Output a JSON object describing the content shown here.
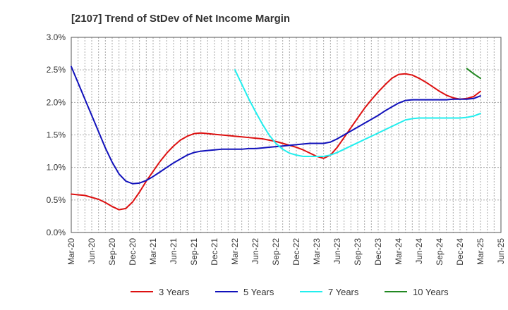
{
  "chart_data": {
    "type": "line",
    "title": "[2107]  Trend of StDev of Net Income Margin",
    "xlabel": "",
    "ylabel": "",
    "x_ticks": [
      "Mar-20",
      "Jun-20",
      "Sep-20",
      "Dec-20",
      "Mar-21",
      "Jun-21",
      "Sep-21",
      "Dec-21",
      "Mar-22",
      "Jun-22",
      "Sep-22",
      "Dec-22",
      "Mar-23",
      "Jun-23",
      "Sep-23",
      "Dec-23",
      "Mar-24",
      "Jun-24",
      "Sep-24",
      "Dec-24",
      "Mar-25",
      "Jun-25"
    ],
    "y_ticks": [
      "0.0%",
      "0.5%",
      "1.0%",
      "1.5%",
      "2.0%",
      "2.5%",
      "3.0%"
    ],
    "ylim": [
      0,
      3.0
    ],
    "y_unit": "%",
    "grid": true,
    "legend_position": "bottom",
    "series": [
      {
        "name": "3 Years",
        "color": "#dd1111",
        "points": [
          [
            "Mar-20",
            0.59
          ],
          [
            "Apr-20",
            0.58
          ],
          [
            "May-20",
            0.57
          ],
          [
            "Jun-20",
            0.54
          ],
          [
            "Jul-20",
            0.51
          ],
          [
            "Aug-20",
            0.46
          ],
          [
            "Sep-20",
            0.4
          ],
          [
            "Oct-20",
            0.35
          ],
          [
            "Nov-20",
            0.37
          ],
          [
            "Dec-20",
            0.47
          ],
          [
            "Jan-21",
            0.62
          ],
          [
            "Feb-21",
            0.79
          ],
          [
            "Mar-21",
            0.94
          ],
          [
            "Apr-21",
            1.09
          ],
          [
            "May-21",
            1.22
          ],
          [
            "Jun-21",
            1.33
          ],
          [
            "Jul-21",
            1.42
          ],
          [
            "Aug-21",
            1.48
          ],
          [
            "Sep-21",
            1.52
          ],
          [
            "Oct-21",
            1.53
          ],
          [
            "Nov-21",
            1.52
          ],
          [
            "Dec-21",
            1.51
          ],
          [
            "Jan-22",
            1.5
          ],
          [
            "Feb-22",
            1.49
          ],
          [
            "Mar-22",
            1.48
          ],
          [
            "Apr-22",
            1.47
          ],
          [
            "May-22",
            1.46
          ],
          [
            "Jun-22",
            1.45
          ],
          [
            "Jul-22",
            1.44
          ],
          [
            "Aug-22",
            1.42
          ],
          [
            "Sep-22",
            1.4
          ],
          [
            "Oct-22",
            1.37
          ],
          [
            "Nov-22",
            1.34
          ],
          [
            "Dec-22",
            1.31
          ],
          [
            "Jan-23",
            1.27
          ],
          [
            "Feb-23",
            1.22
          ],
          [
            "Mar-23",
            1.17
          ],
          [
            "Apr-23",
            1.14
          ],
          [
            "May-23",
            1.19
          ],
          [
            "Jun-23",
            1.31
          ],
          [
            "Jul-23",
            1.46
          ],
          [
            "Aug-23",
            1.61
          ],
          [
            "Sep-23",
            1.76
          ],
          [
            "Oct-23",
            1.91
          ],
          [
            "Nov-23",
            2.04
          ],
          [
            "Dec-23",
            2.16
          ],
          [
            "Jan-24",
            2.27
          ],
          [
            "Feb-24",
            2.37
          ],
          [
            "Mar-24",
            2.43
          ],
          [
            "Apr-24",
            2.44
          ],
          [
            "May-24",
            2.42
          ],
          [
            "Jun-24",
            2.37
          ],
          [
            "Jul-24",
            2.31
          ],
          [
            "Aug-24",
            2.24
          ],
          [
            "Sep-24",
            2.17
          ],
          [
            "Oct-24",
            2.11
          ],
          [
            "Nov-24",
            2.07
          ],
          [
            "Dec-24",
            2.05
          ],
          [
            "Jan-25",
            2.06
          ],
          [
            "Feb-25",
            2.09
          ],
          [
            "Mar-25",
            2.17
          ]
        ]
      },
      {
        "name": "5 Years",
        "color": "#1111bb",
        "points": [
          [
            "Mar-20",
            2.55
          ],
          [
            "Apr-20",
            2.3
          ],
          [
            "May-20",
            2.05
          ],
          [
            "Jun-20",
            1.8
          ],
          [
            "Jul-20",
            1.55
          ],
          [
            "Aug-20",
            1.3
          ],
          [
            "Sep-20",
            1.08
          ],
          [
            "Oct-20",
            0.9
          ],
          [
            "Nov-20",
            0.79
          ],
          [
            "Dec-20",
            0.75
          ],
          [
            "Jan-21",
            0.76
          ],
          [
            "Feb-21",
            0.8
          ],
          [
            "Mar-21",
            0.86
          ],
          [
            "Apr-21",
            0.93
          ],
          [
            "May-21",
            1.0
          ],
          [
            "Jun-21",
            1.07
          ],
          [
            "Jul-21",
            1.13
          ],
          [
            "Aug-21",
            1.19
          ],
          [
            "Sep-21",
            1.23
          ],
          [
            "Oct-21",
            1.25
          ],
          [
            "Nov-21",
            1.26
          ],
          [
            "Dec-21",
            1.27
          ],
          [
            "Jan-22",
            1.28
          ],
          [
            "Feb-22",
            1.28
          ],
          [
            "Mar-22",
            1.28
          ],
          [
            "Apr-22",
            1.28
          ],
          [
            "May-22",
            1.29
          ],
          [
            "Jun-22",
            1.29
          ],
          [
            "Jul-22",
            1.3
          ],
          [
            "Aug-22",
            1.31
          ],
          [
            "Sep-22",
            1.32
          ],
          [
            "Oct-22",
            1.33
          ],
          [
            "Nov-22",
            1.34
          ],
          [
            "Dec-22",
            1.35
          ],
          [
            "Jan-23",
            1.36
          ],
          [
            "Feb-23",
            1.37
          ],
          [
            "Mar-23",
            1.37
          ],
          [
            "Apr-23",
            1.37
          ],
          [
            "May-23",
            1.39
          ],
          [
            "Jun-23",
            1.44
          ],
          [
            "Jul-23",
            1.5
          ],
          [
            "Aug-23",
            1.56
          ],
          [
            "Sep-23",
            1.62
          ],
          [
            "Oct-23",
            1.68
          ],
          [
            "Nov-23",
            1.74
          ],
          [
            "Dec-23",
            1.8
          ],
          [
            "Jan-24",
            1.87
          ],
          [
            "Feb-24",
            1.93
          ],
          [
            "Mar-24",
            1.99
          ],
          [
            "Apr-24",
            2.03
          ],
          [
            "May-24",
            2.04
          ],
          [
            "Jun-24",
            2.04
          ],
          [
            "Jul-24",
            2.04
          ],
          [
            "Aug-24",
            2.04
          ],
          [
            "Sep-24",
            2.04
          ],
          [
            "Oct-24",
            2.04
          ],
          [
            "Nov-24",
            2.05
          ],
          [
            "Dec-24",
            2.05
          ],
          [
            "Jan-25",
            2.05
          ],
          [
            "Feb-25",
            2.06
          ],
          [
            "Mar-25",
            2.1
          ]
        ]
      },
      {
        "name": "7 Years",
        "color": "#22eeee",
        "points": [
          [
            "Mar-22",
            2.5
          ],
          [
            "Apr-22",
            2.28
          ],
          [
            "May-22",
            2.06
          ],
          [
            "Jun-22",
            1.86
          ],
          [
            "Jul-22",
            1.67
          ],
          [
            "Aug-22",
            1.5
          ],
          [
            "Sep-22",
            1.37
          ],
          [
            "Oct-22",
            1.28
          ],
          [
            "Nov-22",
            1.22
          ],
          [
            "Dec-22",
            1.19
          ],
          [
            "Jan-23",
            1.17
          ],
          [
            "Feb-23",
            1.17
          ],
          [
            "Mar-23",
            1.17
          ],
          [
            "Apr-23",
            1.17
          ],
          [
            "May-23",
            1.19
          ],
          [
            "Jun-23",
            1.23
          ],
          [
            "Jul-23",
            1.28
          ],
          [
            "Aug-23",
            1.33
          ],
          [
            "Sep-23",
            1.38
          ],
          [
            "Oct-23",
            1.43
          ],
          [
            "Nov-23",
            1.48
          ],
          [
            "Dec-23",
            1.53
          ],
          [
            "Jan-24",
            1.58
          ],
          [
            "Feb-24",
            1.63
          ],
          [
            "Mar-24",
            1.68
          ],
          [
            "Apr-24",
            1.73
          ],
          [
            "May-24",
            1.75
          ],
          [
            "Jun-24",
            1.76
          ],
          [
            "Jul-24",
            1.76
          ],
          [
            "Aug-24",
            1.76
          ],
          [
            "Sep-24",
            1.76
          ],
          [
            "Oct-24",
            1.76
          ],
          [
            "Nov-24",
            1.76
          ],
          [
            "Dec-24",
            1.76
          ],
          [
            "Jan-25",
            1.77
          ],
          [
            "Feb-25",
            1.79
          ],
          [
            "Mar-25",
            1.83
          ]
        ]
      },
      {
        "name": "10 Years",
        "color": "#228822",
        "points": [
          [
            "Jan-25",
            2.52
          ],
          [
            "Feb-25",
            2.44
          ],
          [
            "Mar-25",
            2.37
          ]
        ]
      }
    ]
  }
}
